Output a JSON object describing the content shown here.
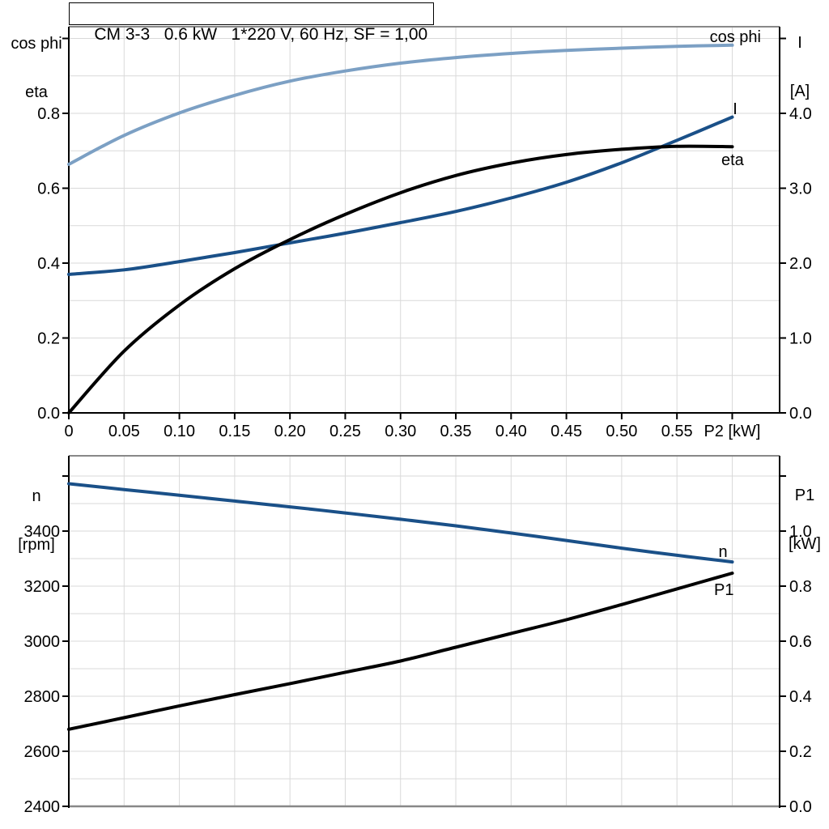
{
  "title": "CM 3-3   0.6 kW   1*220 V, 60 Hz, SF = 1,00",
  "colors": {
    "curve_dark_blue": "#1A5088",
    "curve_light_blue": "#7CA0C4",
    "curve_black": "#000000",
    "grid": "#D9D9D9",
    "border_gray": "#888888",
    "axis_black": "#000000"
  },
  "chart_data": [
    {
      "type": "line",
      "name": "motor-electrical-curves",
      "left_axis_unit": [
        "cos phi",
        "eta"
      ],
      "right_axis_unit": [
        "I",
        "[A]"
      ],
      "xlabel": "P2 [kW]",
      "xlim": [
        0,
        0.643
      ],
      "ylim_left": [
        0,
        1.03
      ],
      "ylim_right": [
        0,
        5.16
      ],
      "grid": true,
      "x": [
        0,
        0.05,
        0.1,
        0.15,
        0.2,
        0.25,
        0.3,
        0.35,
        0.4,
        0.45,
        0.5,
        0.55,
        0.6
      ],
      "xtick_labels": [
        "0",
        "0.05",
        "0.10",
        "0.15",
        "0.20",
        "0.25",
        "0.30",
        "0.35",
        "0.40",
        "0.45",
        "0.50",
        "0.55",
        "P2 [kW]"
      ],
      "left_ticks": {
        "values": [
          0,
          0.2,
          0.4,
          0.6,
          0.8
        ],
        "labels": [
          "0.0",
          "0.2",
          "0.4",
          "0.6",
          "0.8"
        ],
        "unlabeled": [
          1.0
        ]
      },
      "right_ticks": {
        "values": [
          0,
          1,
          2,
          3,
          4
        ],
        "labels": [
          "0.0",
          "1.0",
          "2.0",
          "3.0",
          "4.0"
        ],
        "unlabeled": [
          5.0
        ]
      },
      "series": [
        {
          "name": "cos phi",
          "axis": "left",
          "color": "#7CA0C4",
          "values": [
            0.664,
            0.741,
            0.801,
            0.848,
            0.886,
            0.913,
            0.934,
            0.949,
            0.96,
            0.968,
            0.974,
            0.979,
            0.982
          ]
        },
        {
          "name": "I",
          "axis": "right",
          "color": "#1A5088",
          "values": [
            1.85,
            1.91,
            2.02,
            2.14,
            2.27,
            2.4,
            2.54,
            2.69,
            2.87,
            3.08,
            3.34,
            3.64,
            3.95
          ]
        },
        {
          "name": "eta",
          "axis": "left",
          "color": "#000000",
          "values": [
            0.0,
            0.165,
            0.288,
            0.385,
            0.463,
            0.53,
            0.588,
            0.634,
            0.667,
            0.69,
            0.704,
            0.712,
            0.711
          ]
        }
      ]
    },
    {
      "type": "line",
      "name": "motor-speed-power-curves",
      "left_axis_unit": [
        "n",
        "[rpm]"
      ],
      "right_axis_unit": [
        "P1",
        "[kW]"
      ],
      "xlabel": "",
      "xlim": [
        0,
        0.643
      ],
      "ylim_left": [
        2400,
        3673
      ],
      "ylim_right": [
        0,
        1.27
      ],
      "grid": true,
      "x": [
        0,
        0.05,
        0.1,
        0.15,
        0.2,
        0.25,
        0.3,
        0.35,
        0.4,
        0.45,
        0.5,
        0.55,
        0.6
      ],
      "xtick_labels": [],
      "left_ticks": {
        "values": [
          2400,
          2600,
          2800,
          3000,
          3200,
          3400
        ],
        "labels": [
          "2400",
          "2600",
          "2800",
          "3000",
          "3200",
          "3400"
        ],
        "unlabeled": [
          3600
        ]
      },
      "right_ticks": {
        "values": [
          0,
          0.2,
          0.4,
          0.6,
          0.8,
          1.0
        ],
        "labels": [
          "0.0",
          "0.2",
          "0.4",
          "0.6",
          "0.8",
          "1.0"
        ],
        "unlabeled": [
          1.2
        ]
      },
      "series": [
        {
          "name": "n",
          "axis": "left",
          "color": "#1A5088",
          "values": [
            3572,
            3551,
            3530,
            3509,
            3488,
            3466,
            3443,
            3419,
            3393,
            3366,
            3338,
            3312,
            3288
          ]
        },
        {
          "name": "P1",
          "axis": "right",
          "color": "#000000",
          "values": [
            0.28,
            0.322,
            0.365,
            0.406,
            0.446,
            0.487,
            0.528,
            0.578,
            0.628,
            0.678,
            0.733,
            0.79,
            0.847
          ]
        }
      ]
    }
  ]
}
